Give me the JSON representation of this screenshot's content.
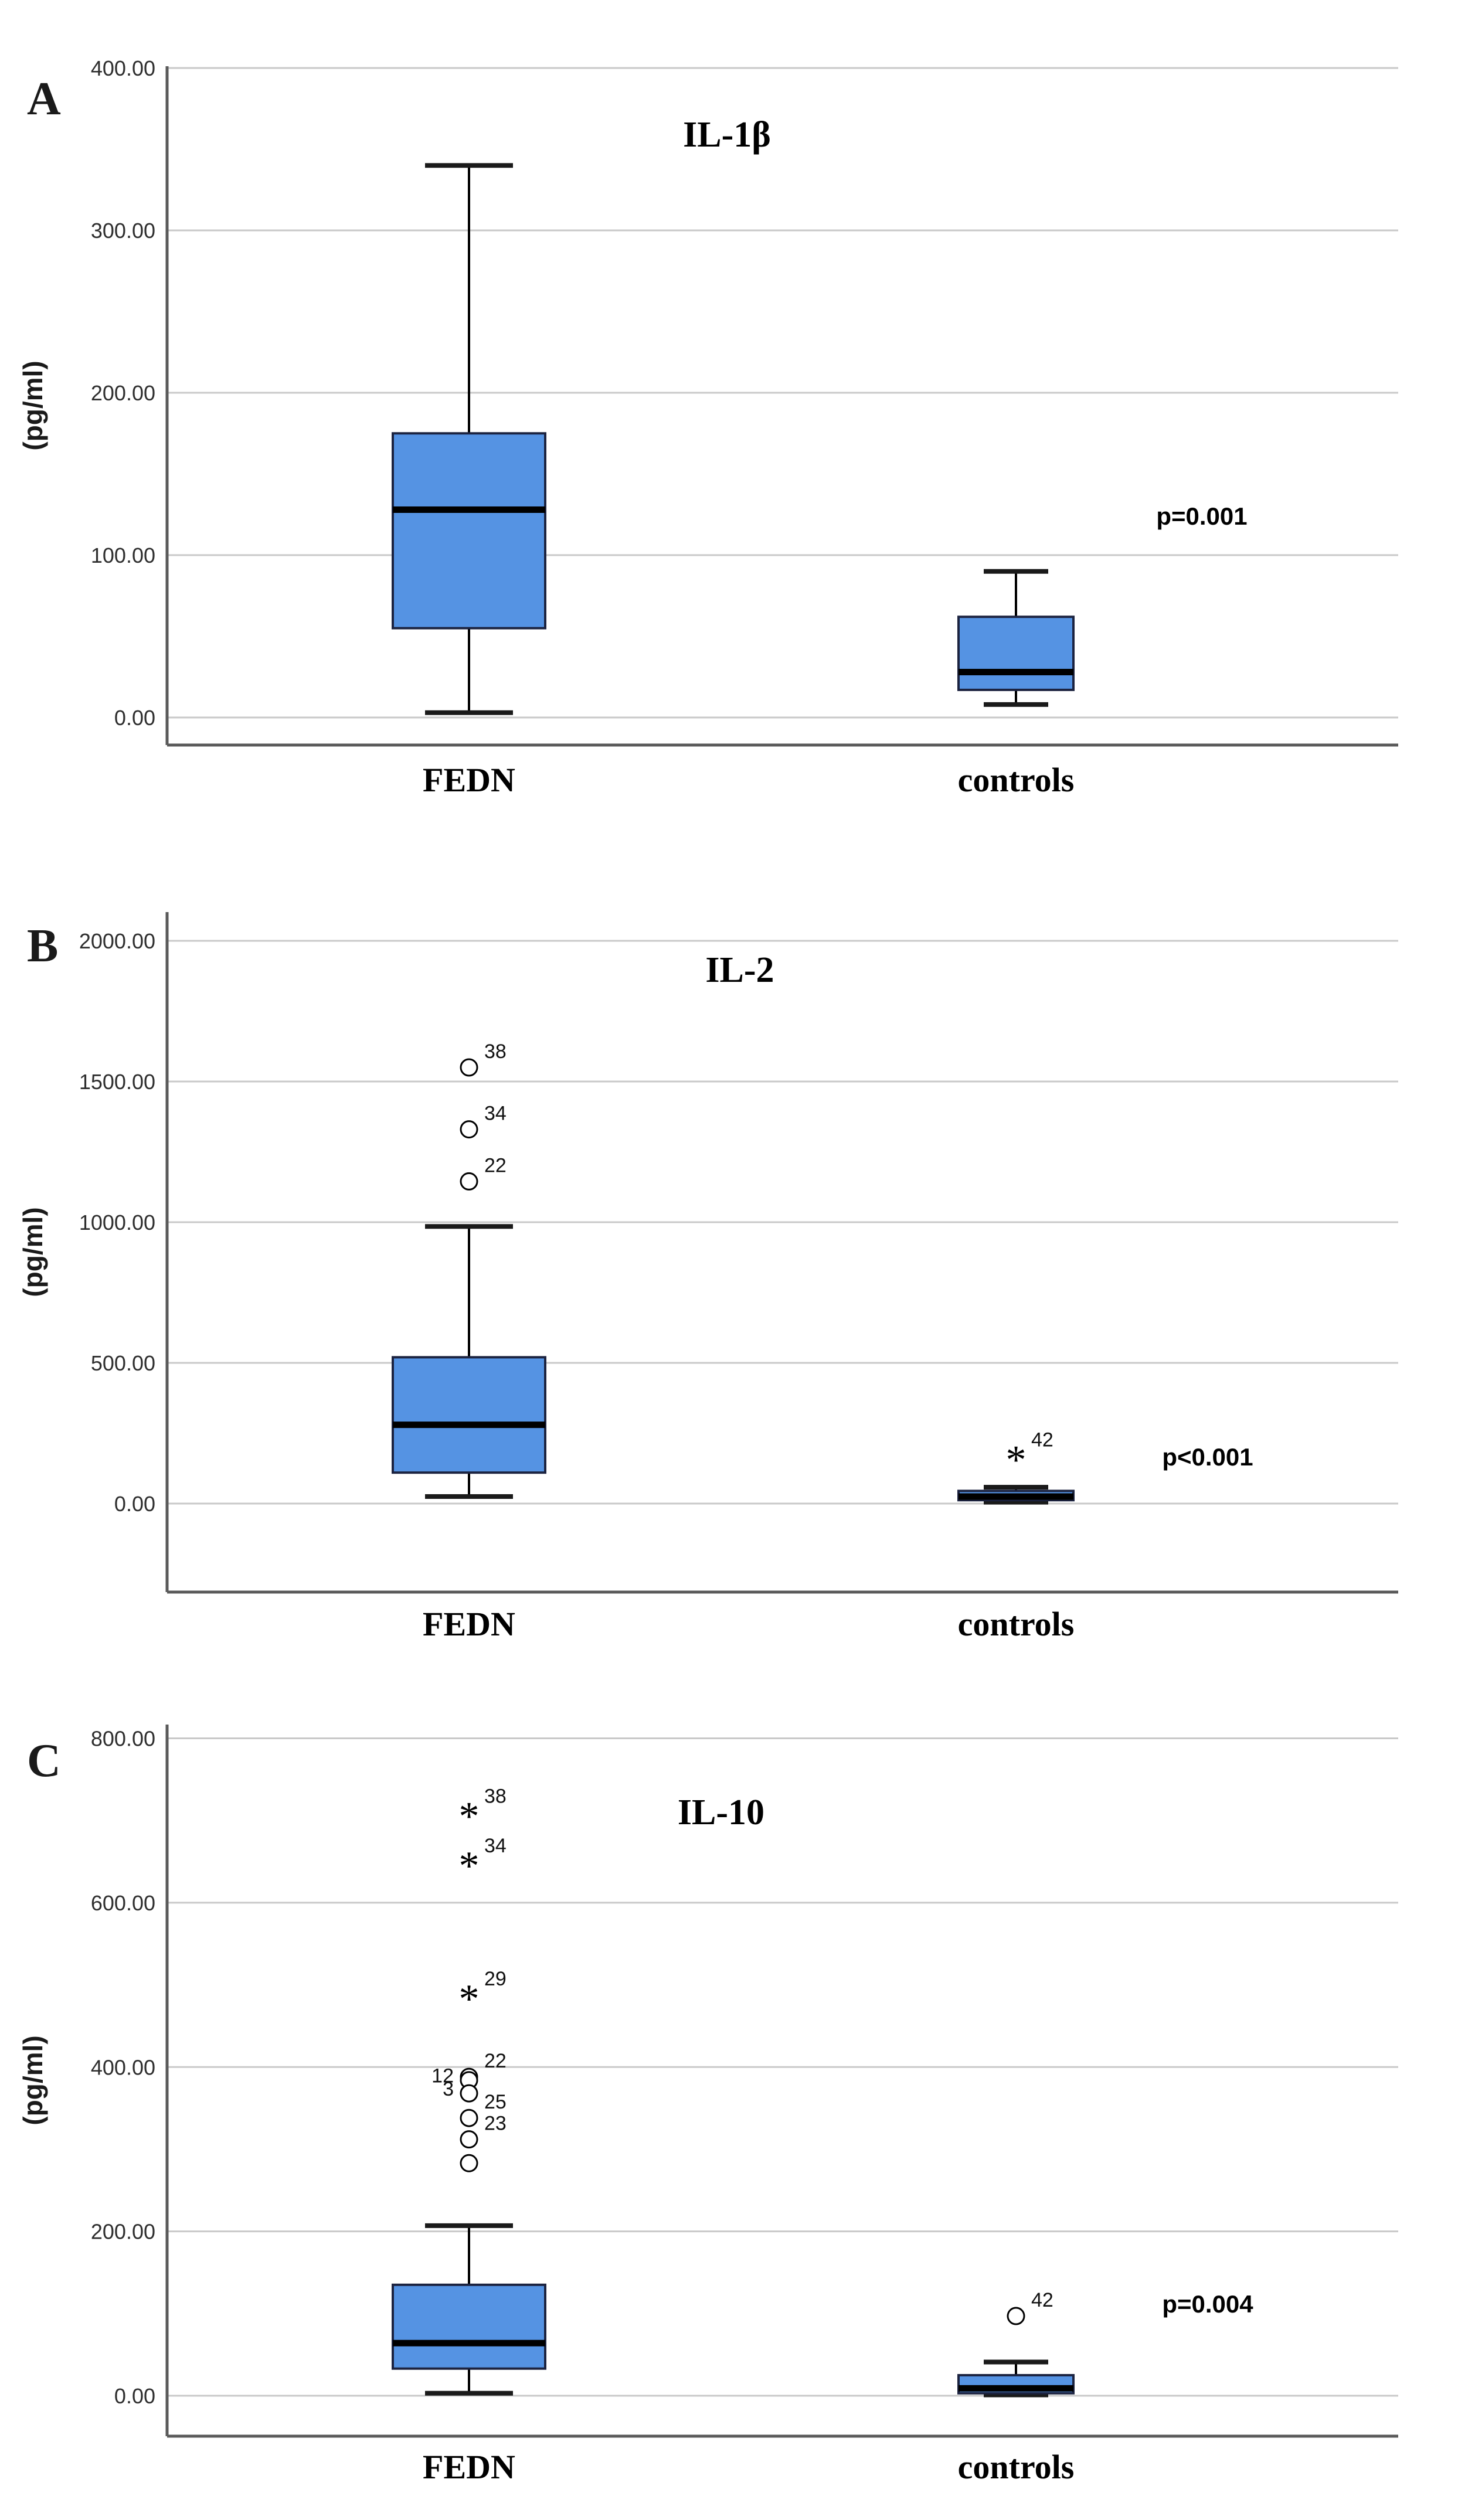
{
  "figure": {
    "background": "#ffffff",
    "box_fill": "#5593e3",
    "box_border": "#1c2340",
    "grid_color": "#c9c9c9",
    "axis_color": "#5a5a5a",
    "y_axis_unit": "(pg/ml)"
  },
  "chart_data": [
    {
      "type": "boxplot",
      "panel_letter": "A",
      "title": "IL-1β",
      "ylabel": "(pg/ml)",
      "p_label": "p=0.001",
      "categories": [
        "FEDN",
        "controls"
      ],
      "ylim": [
        0,
        415
      ],
      "grid": true,
      "legend": "none",
      "yticks": [
        {
          "value": 400,
          "label": "400.00"
        },
        {
          "value": 300,
          "label": "300.00"
        },
        {
          "value": 200,
          "label": "200.00"
        },
        {
          "value": 100,
          "label": "100.00"
        },
        {
          "value": 0,
          "label": "0.00"
        }
      ],
      "series": [
        {
          "name": "FEDN",
          "whisker_low": 3,
          "q1": 55,
          "median": 128,
          "q3": 175,
          "whisker_high": 340,
          "outliers": []
        },
        {
          "name": "controls",
          "whisker_low": 8,
          "q1": 17,
          "median": 28,
          "q3": 62,
          "whisker_high": 90,
          "outliers": []
        }
      ]
    },
    {
      "type": "boxplot",
      "panel_letter": "B",
      "title": "IL-2",
      "ylabel": "(pg/ml)",
      "p_label": "p<0.001",
      "categories": [
        "FEDN",
        "controls"
      ],
      "ylim": [
        0,
        2100
      ],
      "grid": true,
      "legend": "none",
      "yticks": [
        {
          "value": 2000,
          "label": "2000.00"
        },
        {
          "value": 1500,
          "label": "1500.00"
        },
        {
          "value": 1000,
          "label": "1000.00"
        },
        {
          "value": 500,
          "label": "500.00"
        },
        {
          "value": 0,
          "label": "0.00"
        }
      ],
      "series": [
        {
          "name": "FEDN",
          "whisker_low": 25,
          "q1": 110,
          "median": 280,
          "q3": 520,
          "whisker_high": 985,
          "outliers": [
            {
              "value": 1550,
              "case": "38",
              "marker": "circle",
              "label_side": "right"
            },
            {
              "value": 1330,
              "case": "34",
              "marker": "circle",
              "label_side": "right"
            },
            {
              "value": 1145,
              "case": "22",
              "marker": "circle",
              "label_side": "right"
            }
          ]
        },
        {
          "name": "controls",
          "whisker_low": 5,
          "q1": 12,
          "median": 25,
          "q3": 45,
          "whisker_high": 58,
          "outliers": [
            {
              "value": 170,
              "case": "42",
              "marker": "star",
              "label_side": "right"
            }
          ]
        }
      ]
    },
    {
      "type": "boxplot",
      "panel_letter": "C",
      "title": "IL-10",
      "ylabel": "(pg/ml)",
      "p_label": "p=0.004",
      "categories": [
        "FEDN",
        "controls"
      ],
      "ylim": [
        0,
        865
      ],
      "grid": true,
      "legend": "none",
      "yticks": [
        {
          "value": 800,
          "label": "800.00"
        },
        {
          "value": 600,
          "label": "600.00"
        },
        {
          "value": 400,
          "label": "400.00"
        },
        {
          "value": 200,
          "label": "200.00"
        },
        {
          "value": 0,
          "label": "0.00"
        }
      ],
      "series": [
        {
          "name": "FEDN",
          "whisker_low": 3,
          "q1": 33,
          "median": 64,
          "q3": 135,
          "whisker_high": 207,
          "outliers": [
            {
              "value": 710,
              "case": "38",
              "marker": "star",
              "label_side": "right"
            },
            {
              "value": 650,
              "case": "34",
              "marker": "star",
              "label_side": "right"
            },
            {
              "value": 488,
              "case": "29",
              "marker": "star",
              "label_side": "right"
            },
            {
              "value": 388,
              "case": "22",
              "marker": "circle",
              "label_side": "right"
            },
            {
              "value": 384,
              "case": "12",
              "marker": "circle",
              "label_side": "left"
            },
            {
              "value": 368,
              "case": "3",
              "marker": "circle",
              "label_side": "left"
            },
            {
              "value": 338,
              "case": "25",
              "marker": "circle",
              "label_side": "right"
            },
            {
              "value": 312,
              "case": "23",
              "marker": "circle",
              "label_side": "right"
            },
            {
              "value": 283,
              "case": "",
              "marker": "circle",
              "label_side": "none"
            }
          ]
        },
        {
          "name": "controls",
          "whisker_low": 1,
          "q1": 3,
          "median": 9,
          "q3": 25,
          "whisker_high": 41,
          "outliers": [
            {
              "value": 97,
              "case": "42",
              "marker": "circle",
              "label_side": "right"
            }
          ]
        }
      ]
    }
  ]
}
